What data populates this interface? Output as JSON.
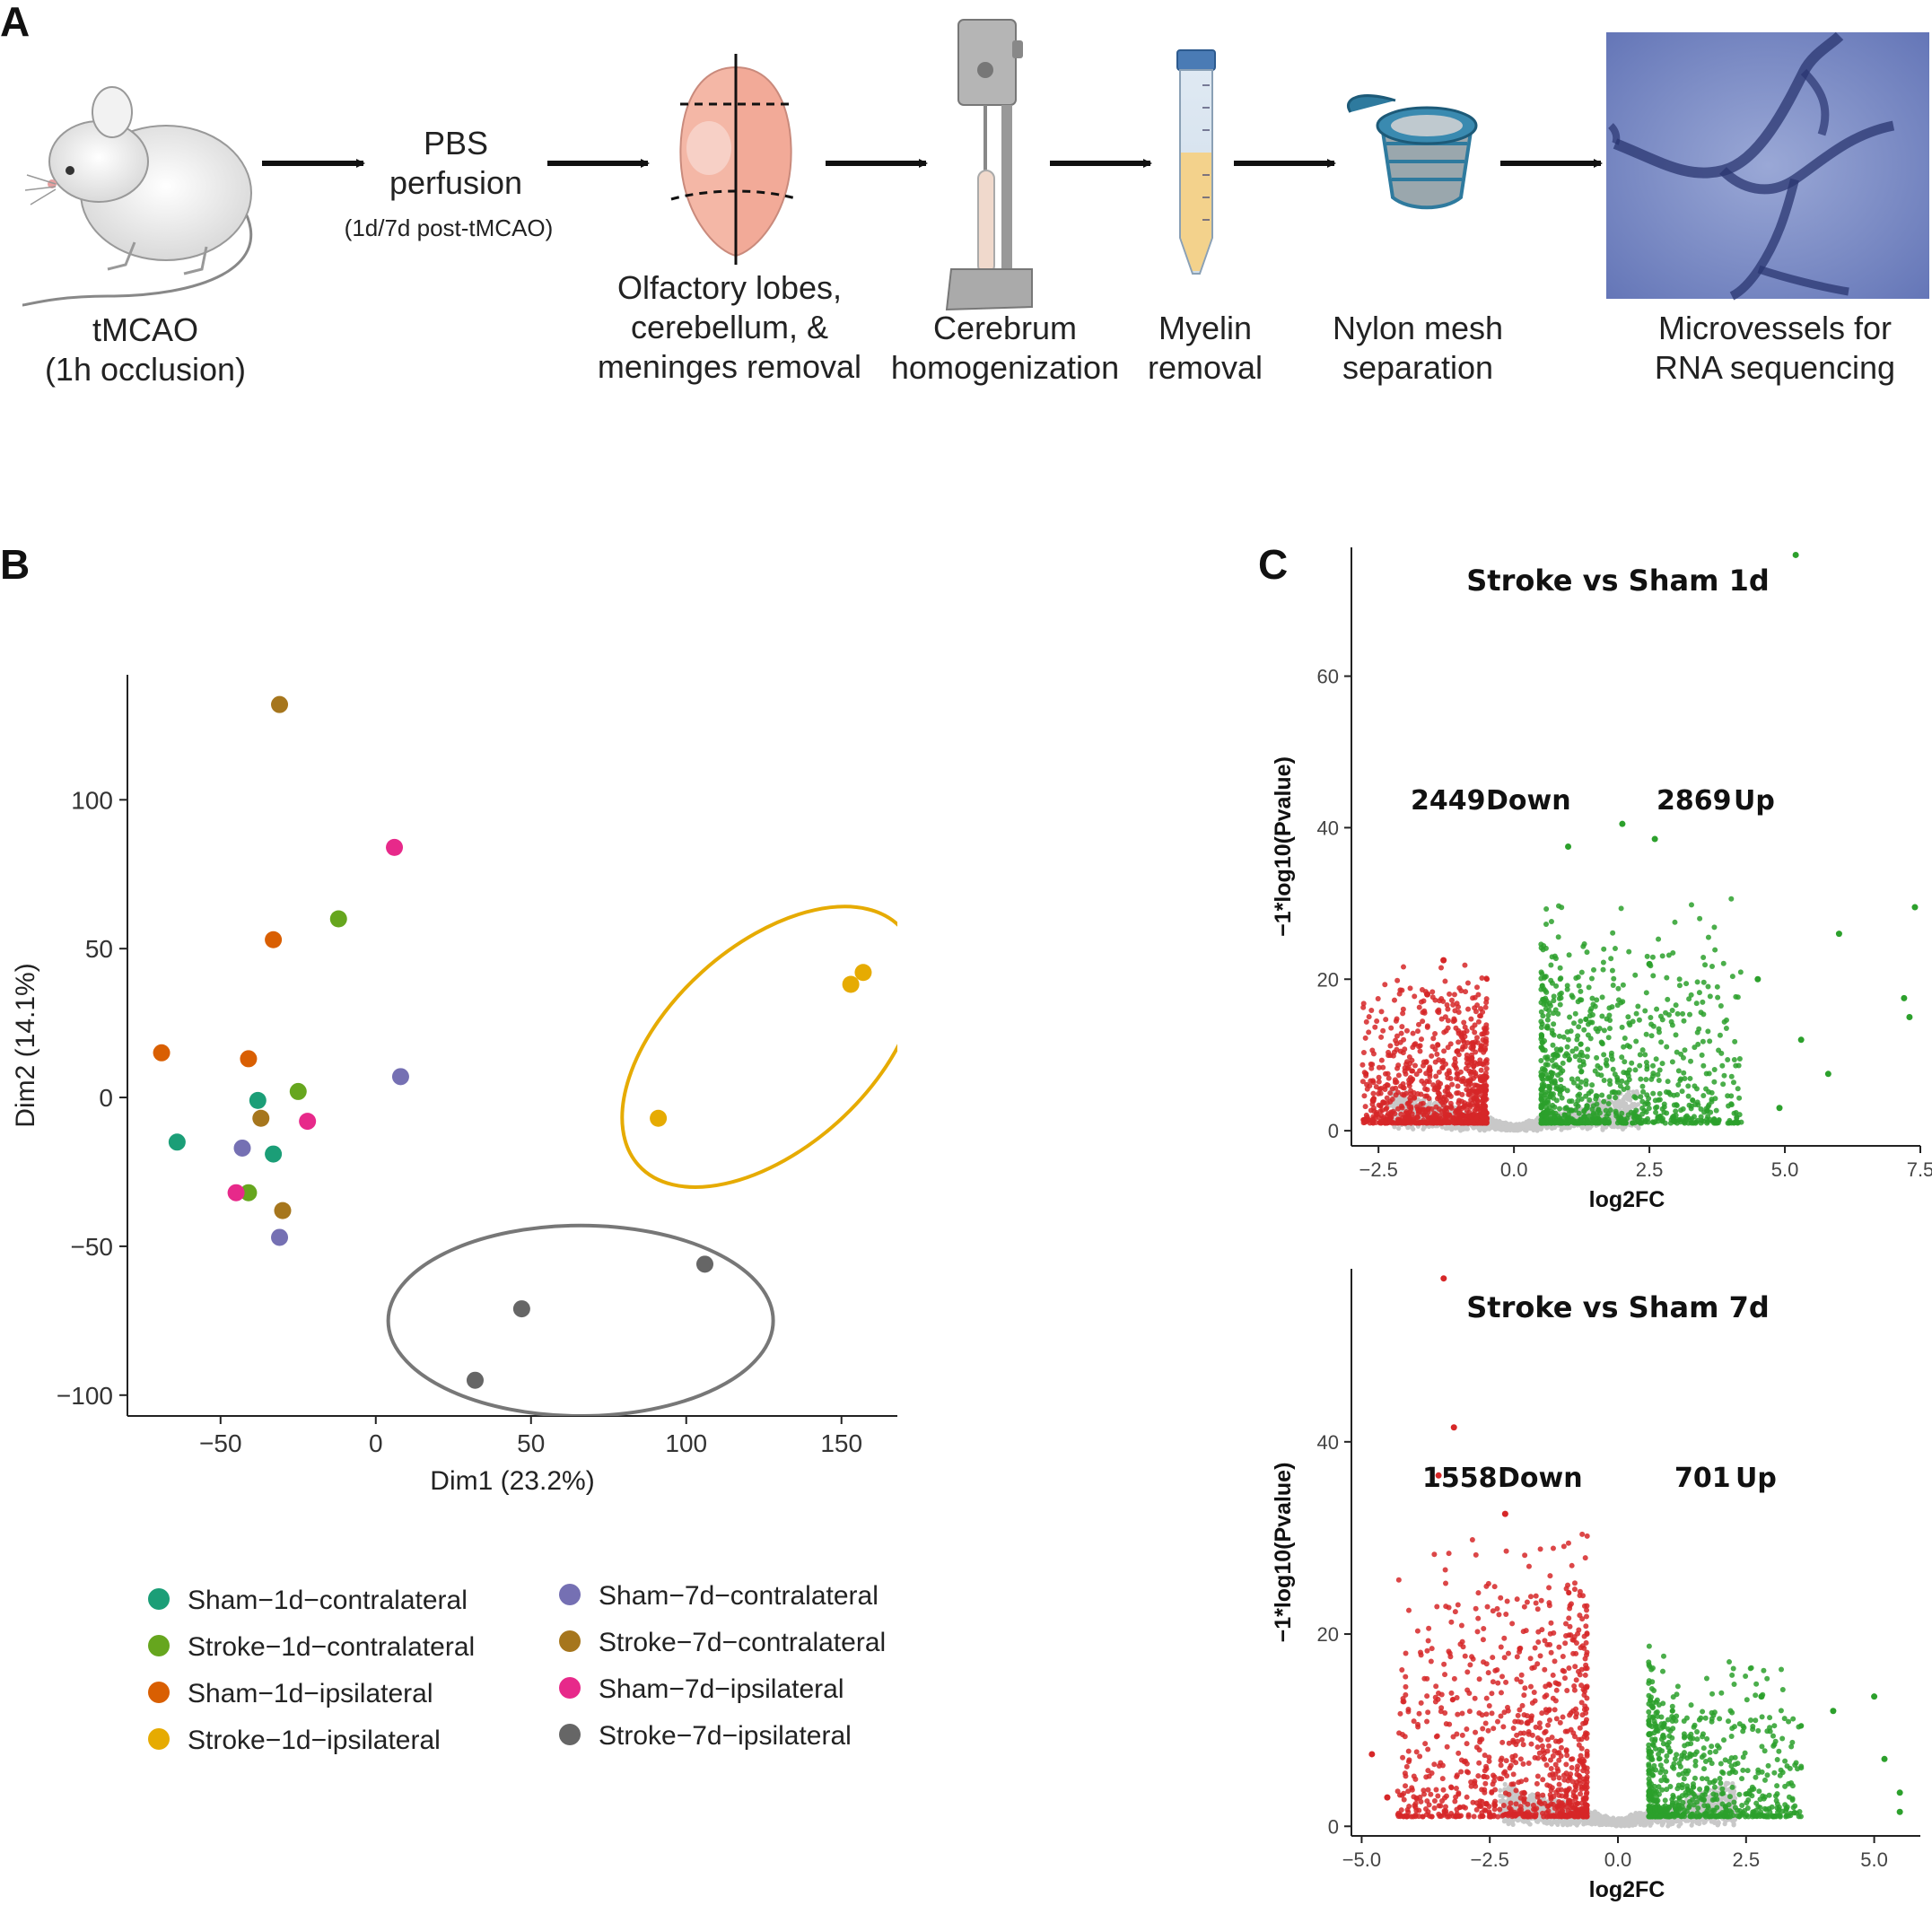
{
  "panel_labels": {
    "a": "A",
    "b": "B",
    "c": "C"
  },
  "workflow": {
    "steps": [
      {
        "line1": "tMCAO",
        "line2": "(1h occlusion)",
        "line3": ""
      },
      {
        "line1": "PBS",
        "line2": "perfusion",
        "line3": "(1d/7d post-tMCAO)"
      },
      {
        "line1": "Olfactory lobes,",
        "line2": "cerebellum, &",
        "line3": "meninges removal"
      },
      {
        "line1": "Cerebrum",
        "line2": "homogenization",
        "line3": ""
      },
      {
        "line1": "Myelin",
        "line2": "removal",
        "line3": ""
      },
      {
        "line1": "Nylon mesh",
        "line2": "separation",
        "line3": ""
      },
      {
        "line1": "Microvessels for",
        "line2": "RNA sequencing",
        "line3": ""
      }
    ],
    "icons": [
      "mouse-illustration",
      "brain-illustration",
      "homogenizer-illustration",
      "centrifuge-tube-illustration",
      "mesh-strainer-illustration",
      "microvessels-micrograph"
    ]
  },
  "chart_data": [
    {
      "type": "scatter",
      "id": "pca",
      "xlabel": "Dim1 (23.2%)",
      "ylabel": "Dim2 (14.1%)",
      "xlim": [
        -80,
        168
      ],
      "ylim": [
        -107,
        142
      ],
      "xticks": [
        -50,
        0,
        50,
        100,
        150
      ],
      "yticks": [
        -100,
        -50,
        0,
        50,
        100
      ],
      "series": [
        {
          "name": "Sham−1d−contralateral",
          "color": "#1b9e77",
          "points": [
            [
              -64,
              -15
            ],
            [
              -38,
              -1
            ],
            [
              -33,
              -19
            ]
          ]
        },
        {
          "name": "Stroke−1d−contralateral",
          "color": "#66a61e",
          "points": [
            [
              -12,
              60
            ],
            [
              -25,
              2
            ],
            [
              -41,
              -32
            ]
          ]
        },
        {
          "name": "Sham−1d−ipsilateral",
          "color": "#d95f02",
          "points": [
            [
              -69,
              15
            ],
            [
              -33,
              53
            ],
            [
              -41,
              13
            ]
          ]
        },
        {
          "name": "Stroke−1d−ipsilateral",
          "color": "#e6ab02",
          "points": [
            [
              153,
              38
            ],
            [
              157,
              42
            ],
            [
              91,
              -7
            ]
          ]
        },
        {
          "name": "Sham−7d−contralateral",
          "color": "#7570b3",
          "points": [
            [
              8,
              7
            ],
            [
              -43,
              -17
            ],
            [
              -31,
              -47
            ]
          ]
        },
        {
          "name": "Stroke−7d−contralateral",
          "color": "#a6761d",
          "points": [
            [
              -31,
              132
            ],
            [
              -37,
              -7
            ],
            [
              -30,
              -38
            ]
          ]
        },
        {
          "name": "Sham−7d−ipsilateral",
          "color": "#e7298a",
          "points": [
            [
              6,
              84
            ],
            [
              -22,
              -8
            ],
            [
              -45,
              -32
            ]
          ]
        },
        {
          "name": "Stroke−7d−ipsilateral",
          "color": "#666666",
          "points": [
            [
              106,
              -56
            ],
            [
              47,
              -71
            ],
            [
              32,
              -95
            ]
          ]
        }
      ],
      "ellipses": [
        {
          "group": "Stroke−1d−ipsilateral",
          "color": "#e6ab02",
          "cx": 127,
          "cy": 17,
          "rx": 57,
          "ry": 34,
          "angle_deg": -42
        },
        {
          "group": "Stroke−7d−ipsilateral",
          "color": "#777777",
          "cx": 66,
          "cy": -75,
          "rx": 62,
          "ry": 32,
          "angle_deg": 0
        }
      ],
      "grid": false,
      "legend": "bottom"
    },
    {
      "type": "scatter",
      "id": "volcano-1d",
      "title": "Stroke vs Sham 1d",
      "xlabel": "log2FC",
      "ylabel": "−1*log10(Pvalue)",
      "xlim": [
        -3.0,
        7.5
      ],
      "ylim": [
        -2,
        77
      ],
      "xticks": [
        -2.5,
        0.0,
        2.5,
        5.0,
        7.5
      ],
      "xtick_labels": [
        "−2.5",
        "0.0",
        "2.5",
        "5.0",
        "7.5"
      ],
      "yticks": [
        0,
        20,
        40,
        60
      ],
      "down_count": "2449",
      "down_label": "Down",
      "up_count": "2869",
      "up_label": "Up",
      "colors": {
        "down": "#d62728",
        "up": "#2ca02c",
        "ns": "#c8c8c8"
      },
      "down_cloud": {
        "n": 2449,
        "x_range": [
          -2.8,
          -0.5
        ],
        "y_max": 22
      },
      "up_cloud": {
        "n": 2869,
        "x_range": [
          0.5,
          4.2
        ],
        "y_max": 30
      },
      "highlight_up": [
        [
          5.2,
          76
        ],
        [
          2.0,
          40.5
        ],
        [
          2.6,
          38.5
        ],
        [
          1.0,
          37.5
        ],
        [
          6.0,
          26
        ],
        [
          7.4,
          29.5
        ],
        [
          2.5,
          22
        ],
        [
          4.5,
          20
        ],
        [
          7.2,
          17.5
        ],
        [
          7.3,
          15
        ],
        [
          5.3,
          12
        ],
        [
          5.8,
          7.5
        ],
        [
          4.9,
          3
        ]
      ],
      "highlight_down": [
        [
          -1.3,
          22.5
        ],
        [
          -1.6,
          18
        ],
        [
          -2.6,
          4
        ]
      ]
    },
    {
      "type": "scatter",
      "id": "volcano-7d",
      "title": "Stroke vs Sham 7d",
      "xlabel": "log2FC",
      "ylabel": "−1*log10(Pvalue)",
      "xlim": [
        -5.2,
        5.9
      ],
      "ylim": [
        -1,
        58
      ],
      "xticks": [
        -5.0,
        -2.5,
        0.0,
        2.5,
        5.0
      ],
      "xtick_labels": [
        "−5.0",
        "−2.5",
        "0.0",
        "2.5",
        "5.0"
      ],
      "yticks": [
        0,
        20,
        40
      ],
      "down_count": "1558",
      "down_label": "Down",
      "up_count": "701",
      "up_label": "Up",
      "colors": {
        "down": "#d62728",
        "up": "#2ca02c",
        "ns": "#c8c8c8"
      },
      "down_cloud": {
        "n": 1558,
        "x_range": [
          -4.3,
          -0.6
        ],
        "y_max": 32
      },
      "up_cloud": {
        "n": 701,
        "x_range": [
          0.6,
          3.6
        ],
        "y_max": 18
      },
      "highlight_down": [
        [
          -3.4,
          57
        ],
        [
          -3.2,
          41.5
        ],
        [
          -3.5,
          36.5
        ],
        [
          -2.2,
          32.5
        ],
        [
          -4.8,
          7.5
        ],
        [
          -4.5,
          3
        ]
      ],
      "highlight_up": [
        [
          2.8,
          13.5
        ],
        [
          5.0,
          13.5
        ],
        [
          4.2,
          12
        ],
        [
          5.2,
          7
        ],
        [
          5.5,
          3.5
        ],
        [
          5.5,
          1.5
        ]
      ]
    }
  ]
}
